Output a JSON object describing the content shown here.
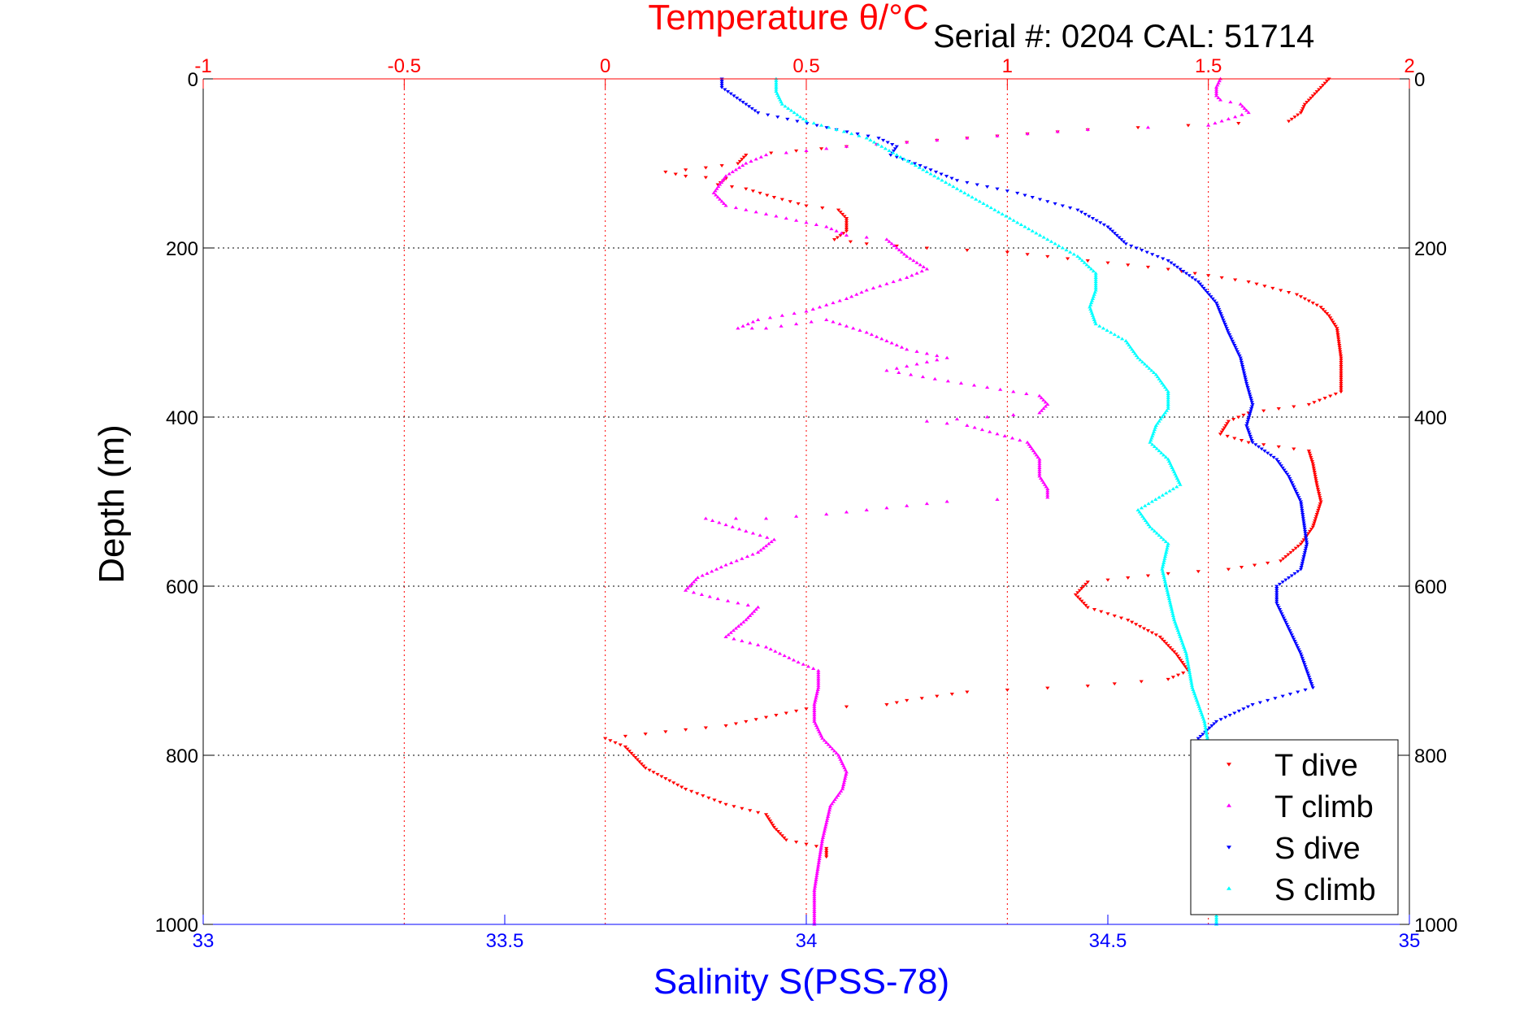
{
  "chart_data": {
    "type": "scatter",
    "title_top": "Temperature θ/°C",
    "serial_info": "Serial #: 0204   CAL: 51714",
    "ylabel": "Depth (m)",
    "xlabel_bottom": "Salinity S(PSS-78)",
    "top_axis": {
      "label": "Temperature θ/°C",
      "range": [
        -1,
        2
      ],
      "ticks": [
        -1,
        -0.5,
        0,
        0.5,
        1,
        1.5,
        2
      ],
      "tick_labels": [
        "-1",
        "-0.5",
        "0",
        "0.5",
        "1",
        "1.5",
        "2"
      ],
      "color": "#ff0000"
    },
    "bottom_axis": {
      "label": "Salinity S(PSS-78)",
      "range": [
        33,
        35
      ],
      "ticks": [
        33,
        33.5,
        34,
        34.5,
        35
      ],
      "tick_labels": [
        "33",
        "33.5",
        "34",
        "34.5",
        "35"
      ],
      "color": "#0000ff"
    },
    "y_axis": {
      "label": "Depth (m)",
      "range": [
        0,
        1000
      ],
      "reversed": true,
      "ticks": [
        0,
        200,
        400,
        600,
        800,
        1000
      ],
      "tick_labels": [
        "0",
        "200",
        "400",
        "600",
        "800",
        "1000"
      ]
    },
    "grid": {
      "vertical": true,
      "horizontal": true,
      "vertical_color": "#ff0000",
      "horizontal_color": "#000000"
    },
    "legend_position": "bottom-right",
    "series": [
      {
        "name": "T dive",
        "axis": "top",
        "color": "#ff0000",
        "marker": "triangle-down",
        "points": [
          [
            1.8,
            0
          ],
          [
            1.78,
            10
          ],
          [
            1.76,
            20
          ],
          [
            1.74,
            30
          ],
          [
            1.73,
            40
          ],
          [
            1.7,
            50
          ],
          [
            1.2,
            60
          ],
          [
            0.9,
            70
          ],
          [
            0.6,
            80
          ],
          [
            0.35,
            90
          ],
          [
            0.33,
            100
          ],
          [
            0.25,
            105
          ],
          [
            0.15,
            110
          ],
          [
            0.2,
            115
          ],
          [
            0.3,
            118
          ],
          [
            0.28,
            125
          ],
          [
            0.35,
            130
          ],
          [
            0.42,
            140
          ],
          [
            0.5,
            150
          ],
          [
            0.58,
            155
          ],
          [
            0.6,
            165
          ],
          [
            0.6,
            180
          ],
          [
            0.57,
            190
          ],
          [
            0.65,
            195
          ],
          [
            0.8,
            200
          ],
          [
            1.0,
            205
          ],
          [
            1.2,
            215
          ],
          [
            1.4,
            225
          ],
          [
            1.6,
            240
          ],
          [
            1.72,
            255
          ],
          [
            1.78,
            270
          ],
          [
            1.8,
            280
          ],
          [
            1.82,
            295
          ],
          [
            1.83,
            330
          ],
          [
            1.83,
            370
          ],
          [
            1.75,
            385
          ],
          [
            1.6,
            395
          ],
          [
            1.55,
            405
          ],
          [
            1.53,
            420
          ],
          [
            1.6,
            430
          ],
          [
            1.75,
            440
          ],
          [
            1.76,
            455
          ],
          [
            1.77,
            480
          ],
          [
            1.78,
            500
          ],
          [
            1.76,
            530
          ],
          [
            1.73,
            550
          ],
          [
            1.68,
            570
          ],
          [
            1.55,
            580
          ],
          [
            1.4,
            585
          ],
          [
            1.2,
            595
          ],
          [
            1.17,
            610
          ],
          [
            1.2,
            625
          ],
          [
            1.3,
            640
          ],
          [
            1.38,
            660
          ],
          [
            1.42,
            680
          ],
          [
            1.45,
            700
          ],
          [
            1.4,
            710
          ],
          [
            1.2,
            718
          ],
          [
            0.9,
            725
          ],
          [
            0.75,
            735
          ],
          [
            0.7,
            740
          ],
          [
            0.5,
            745
          ],
          [
            0.4,
            755
          ],
          [
            0.3,
            765
          ],
          [
            0.15,
            772
          ],
          [
            0.0,
            780
          ],
          [
            0.05,
            790
          ],
          [
            0.07,
            800
          ],
          [
            0.1,
            815
          ],
          [
            0.2,
            840
          ],
          [
            0.3,
            858
          ],
          [
            0.4,
            870
          ],
          [
            0.42,
            885
          ],
          [
            0.45,
            900
          ],
          [
            0.5,
            905
          ],
          [
            0.55,
            910
          ],
          [
            0.55,
            920
          ]
        ]
      },
      {
        "name": "T climb",
        "axis": "top",
        "color": "#ff00ff",
        "marker": "triangle-up",
        "points": [
          [
            1.53,
            0
          ],
          [
            1.52,
            10
          ],
          [
            1.52,
            20
          ],
          [
            1.53,
            25
          ],
          [
            1.58,
            30
          ],
          [
            1.6,
            40
          ],
          [
            1.5,
            55
          ],
          [
            1.2,
            60
          ],
          [
            0.9,
            70
          ],
          [
            0.6,
            80
          ],
          [
            0.4,
            90
          ],
          [
            0.35,
            100
          ],
          [
            0.3,
            115
          ],
          [
            0.27,
            135
          ],
          [
            0.3,
            150
          ],
          [
            0.35,
            155
          ],
          [
            0.4,
            160
          ],
          [
            0.45,
            165
          ],
          [
            0.55,
            175
          ],
          [
            0.6,
            185
          ],
          [
            0.7,
            190
          ],
          [
            0.75,
            210
          ],
          [
            0.8,
            225
          ],
          [
            0.75,
            235
          ],
          [
            0.65,
            250
          ],
          [
            0.6,
            260
          ],
          [
            0.5,
            275
          ],
          [
            0.38,
            285
          ],
          [
            0.33,
            295
          ],
          [
            0.4,
            295
          ],
          [
            0.55,
            285
          ],
          [
            0.65,
            300
          ],
          [
            0.75,
            320
          ],
          [
            0.85,
            330
          ],
          [
            0.7,
            345
          ],
          [
            0.82,
            355
          ],
          [
            0.95,
            365
          ],
          [
            1.08,
            375
          ],
          [
            1.1,
            385
          ],
          [
            1.08,
            395
          ],
          [
            0.95,
            400
          ],
          [
            0.8,
            405
          ],
          [
            0.9,
            410
          ],
          [
            1.05,
            430
          ],
          [
            1.08,
            450
          ],
          [
            1.08,
            470
          ],
          [
            1.1,
            485
          ],
          [
            1.1,
            495
          ],
          [
            0.85,
            500
          ],
          [
            0.65,
            510
          ],
          [
            0.55,
            515
          ],
          [
            0.4,
            520
          ],
          [
            0.25,
            520
          ],
          [
            0.35,
            535
          ],
          [
            0.42,
            545
          ],
          [
            0.38,
            560
          ],
          [
            0.3,
            575
          ],
          [
            0.23,
            590
          ],
          [
            0.2,
            605
          ],
          [
            0.28,
            615
          ],
          [
            0.38,
            625
          ],
          [
            0.35,
            640
          ],
          [
            0.3,
            660
          ],
          [
            0.4,
            672
          ],
          [
            0.48,
            690
          ],
          [
            0.53,
            700
          ],
          [
            0.53,
            720
          ],
          [
            0.52,
            740
          ],
          [
            0.52,
            760
          ],
          [
            0.54,
            780
          ],
          [
            0.58,
            800
          ],
          [
            0.6,
            820
          ],
          [
            0.59,
            840
          ],
          [
            0.56,
            860
          ],
          [
            0.55,
            880
          ],
          [
            0.54,
            900
          ],
          [
            0.53,
            930
          ],
          [
            0.52,
            960
          ],
          [
            0.52,
            1000
          ]
        ]
      },
      {
        "name": "S dive",
        "axis": "bottom",
        "color": "#0000ff",
        "marker": "triangle-down",
        "points": [
          [
            33.86,
            0
          ],
          [
            33.86,
            10
          ],
          [
            33.88,
            20
          ],
          [
            33.9,
            30
          ],
          [
            33.92,
            40
          ],
          [
            34.05,
            60
          ],
          [
            34.12,
            70
          ],
          [
            34.15,
            80
          ],
          [
            34.14,
            90
          ],
          [
            34.18,
            100
          ],
          [
            34.25,
            120
          ],
          [
            34.35,
            135
          ],
          [
            34.45,
            155
          ],
          [
            34.5,
            175
          ],
          [
            34.53,
            195
          ],
          [
            34.6,
            215
          ],
          [
            34.65,
            240
          ],
          [
            34.68,
            265
          ],
          [
            34.7,
            300
          ],
          [
            34.72,
            330
          ],
          [
            34.73,
            360
          ],
          [
            34.74,
            385
          ],
          [
            34.73,
            410
          ],
          [
            34.74,
            430
          ],
          [
            34.78,
            450
          ],
          [
            34.8,
            470
          ],
          [
            34.82,
            500
          ],
          [
            34.83,
            550
          ],
          [
            34.82,
            580
          ],
          [
            34.78,
            600
          ],
          [
            34.78,
            620
          ],
          [
            34.8,
            650
          ],
          [
            34.82,
            680
          ],
          [
            34.84,
            720
          ],
          [
            34.74,
            740
          ],
          [
            34.68,
            760
          ],
          [
            34.65,
            780
          ],
          [
            34.66,
            800
          ],
          [
            34.66,
            830
          ],
          [
            34.65,
            860
          ],
          [
            34.65,
            880
          ]
        ]
      },
      {
        "name": "S climb",
        "axis": "bottom",
        "color": "#00ffff",
        "marker": "triangle-up",
        "points": [
          [
            33.95,
            0
          ],
          [
            33.95,
            15
          ],
          [
            33.96,
            30
          ],
          [
            34.0,
            50
          ],
          [
            34.1,
            70
          ],
          [
            34.15,
            90
          ],
          [
            34.2,
            110
          ],
          [
            34.25,
            130
          ],
          [
            34.3,
            150
          ],
          [
            34.35,
            170
          ],
          [
            34.4,
            190
          ],
          [
            34.45,
            210
          ],
          [
            34.48,
            230
          ],
          [
            34.48,
            250
          ],
          [
            34.47,
            270
          ],
          [
            34.48,
            290
          ],
          [
            34.53,
            310
          ],
          [
            34.55,
            330
          ],
          [
            34.58,
            350
          ],
          [
            34.6,
            370
          ],
          [
            34.6,
            390
          ],
          [
            34.58,
            410
          ],
          [
            34.57,
            430
          ],
          [
            34.6,
            450
          ],
          [
            34.62,
            480
          ],
          [
            34.55,
            510
          ],
          [
            34.57,
            530
          ],
          [
            34.6,
            550
          ],
          [
            34.59,
            580
          ],
          [
            34.6,
            610
          ],
          [
            34.61,
            640
          ],
          [
            34.63,
            680
          ],
          [
            34.64,
            720
          ],
          [
            34.66,
            760
          ],
          [
            34.67,
            800
          ],
          [
            34.67,
            850
          ],
          [
            34.67,
            900
          ],
          [
            34.68,
            950
          ],
          [
            34.68,
            1000
          ]
        ]
      }
    ]
  }
}
